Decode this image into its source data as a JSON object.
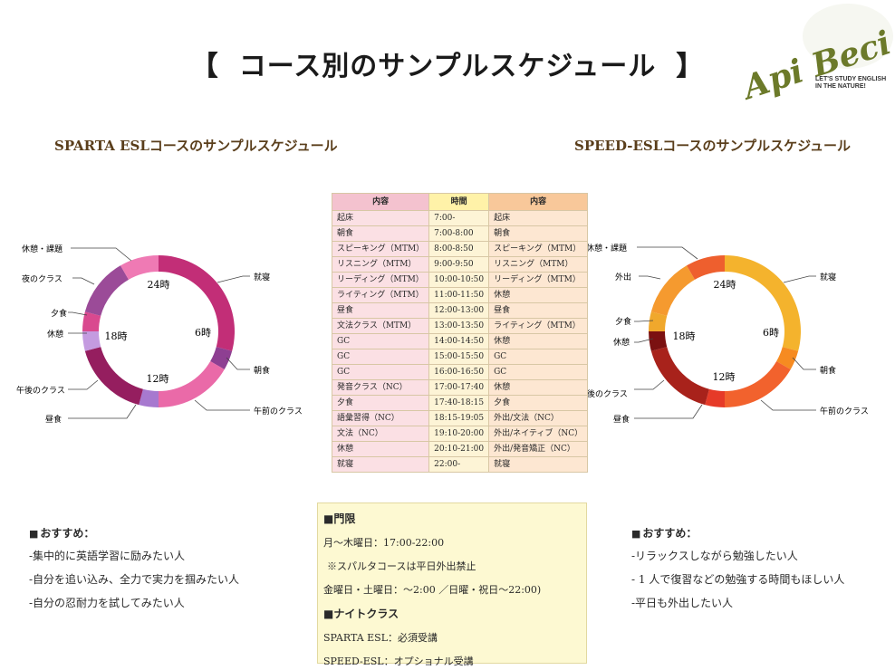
{
  "title": {
    "open": "【",
    "text": "コース別のサンプルスケジュール",
    "close": "】"
  },
  "logo": {
    "text": "Api Beci",
    "tagline_1": "LET'S STUDY ENGLISH",
    "tagline_2": "IN THE NATURE!"
  },
  "sparta": {
    "title": "SPARTA ESLコースのサンプルスケジュール",
    "center_labels": [
      "24時",
      "6時",
      "12時",
      "18時"
    ],
    "segment_labels": [
      "就寝",
      "朝食",
      "午前のクラス",
      "昼食",
      "午後のクラス",
      "休憩",
      "夕食",
      "夜のクラス",
      "休憩・課題"
    ],
    "colors": [
      "#c22e77",
      "#8e3f92",
      "#ea6aa8",
      "#a779cf",
      "#951e5f",
      "#c49be0",
      "#d9498f",
      "#9b4b98",
      "#ef7ab4"
    ],
    "hours": [
      7,
      1,
      4,
      1,
      4,
      1,
      1,
      3,
      2
    ]
  },
  "speed": {
    "title": "SPEED-ESLコースのサンプルスケジュール",
    "center_labels": [
      "24時",
      "6時",
      "12時",
      "18時"
    ],
    "segment_labels": [
      "就寝",
      "朝食",
      "午前のクラス",
      "昼食",
      "午後のクラス",
      "休憩",
      "夕食",
      "外出",
      "休憩・課題"
    ],
    "colors": [
      "#f4b32d",
      "#f68b21",
      "#f2622d",
      "#e63a28",
      "#a8221b",
      "#7b1111",
      "#f0a82c",
      "#f59a2f",
      "#ee5f2e"
    ],
    "hours": [
      7,
      1,
      4,
      1,
      4,
      1,
      1,
      3,
      2
    ]
  },
  "schedule": {
    "headers": [
      "内容",
      "時間",
      "内容"
    ],
    "rows": [
      [
        "起床",
        "7:00-",
        "起床"
      ],
      [
        "朝食",
        "7:00-8:00",
        "朝食"
      ],
      [
        "スピーキング（MTM）",
        "8:00-8:50",
        "スピーキング（MTM）"
      ],
      [
        "リスニング（MTM）",
        "9:00-9:50",
        "リスニング（MTM）"
      ],
      [
        "リーディング（MTM）",
        "10:00-10:50",
        "リーディング（MTM）"
      ],
      [
        "ライティング（MTM）",
        "11:00-11:50",
        "休憩"
      ],
      [
        "昼食",
        "12:00-13:00",
        "昼食"
      ],
      [
        "文法クラス（MTM）",
        "13:00-13:50",
        "ライティング（MTM）"
      ],
      [
        "GC",
        "14:00-14:50",
        "休憩"
      ],
      [
        "GC",
        "15:00-15:50",
        "GC"
      ],
      [
        "GC",
        "16:00-16:50",
        "GC"
      ],
      [
        "発音クラス（NC）",
        "17:00-17:40",
        "休憩"
      ],
      [
        "夕食",
        "17:40-18:15",
        "夕食"
      ],
      [
        "語彙習得（NC）",
        "18:15-19:05",
        "外出/文法（NC）"
      ],
      [
        "文法（NC）",
        "19:10-20:00",
        "外出/ネイティブ（NC）"
      ],
      [
        "休憩",
        "20:10-21:00",
        "外出/発音矯正（NC）"
      ],
      [
        "就寝",
        "22:00-",
        "就寝"
      ]
    ]
  },
  "reco_left": {
    "heading": "おすすめ：",
    "items": [
      "-集中的に英語学習に励みたい人",
      "-自分を追い込み、全力で実力を掴みたい人",
      "-自分の忍耐力を試してみたい人"
    ]
  },
  "reco_right": {
    "heading": "おすすめ：",
    "items": [
      "-リラックスしながら勉強したい人",
      "- 1 人で復習などの勉強する時間もほしい人",
      "-平日も外出したい人"
    ]
  },
  "rules": {
    "curfew_heading": "門限",
    "curfew_weekday": "月〜木曜日：17:00-22:00",
    "curfew_note": "※スパルタコースは平日外出禁止",
    "curfew_weekend": "金曜日・土曜日：〜2:00 ／日曜・祝日〜22:00)",
    "night_heading": "ナイトクラス",
    "night_sparta": "SPARTA ESL：必須受講",
    "night_speed": "SPEED-ESL：オプショナル受講"
  }
}
